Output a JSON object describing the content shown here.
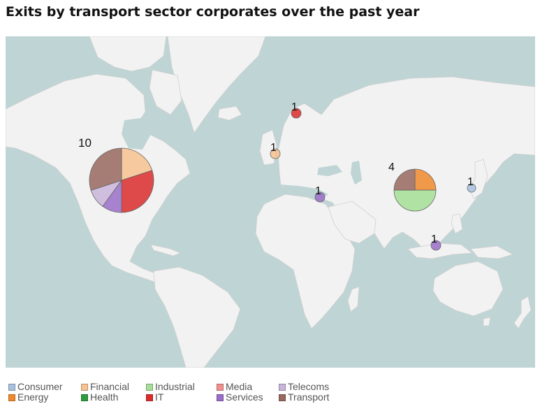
{
  "title": "Exits by transport sector corporates over the past year",
  "colors": {
    "ocean": "#bfd4d4",
    "land": "#f2f2f2"
  },
  "legend": [
    {
      "label": "Consumer",
      "color": "#a9c1e0"
    },
    {
      "label": "Energy",
      "color": "#f0892d"
    },
    {
      "label": "Financial",
      "color": "#f7c28f"
    },
    {
      "label": "Health",
      "color": "#2e9b3e"
    },
    {
      "label": "Industrial",
      "color": "#a5df97"
    },
    {
      "label": "IT",
      "color": "#db2c2c"
    },
    {
      "label": "Media",
      "color": "#f08f8c"
    },
    {
      "label": "Services",
      "color": "#9a6ec8"
    },
    {
      "label": "Telecoms",
      "color": "#c9b5da"
    },
    {
      "label": "Transport",
      "color": "#98695f"
    }
  ],
  "pies": [
    {
      "location": "North America",
      "count": "10",
      "slices": [
        {
          "sector": "Financial",
          "share": 0.2
        },
        {
          "sector": "IT",
          "share": 0.3
        },
        {
          "sector": "Services",
          "share": 0.1
        },
        {
          "sector": "Telecoms",
          "share": 0.1
        },
        {
          "sector": "Transport",
          "share": 0.3
        }
      ]
    },
    {
      "location": "Scandinavia",
      "count": "1",
      "slices": [
        {
          "sector": "IT",
          "share": 1
        }
      ]
    },
    {
      "location": "Western Europe",
      "count": "1",
      "slices": [
        {
          "sector": "Financial",
          "share": 1
        }
      ]
    },
    {
      "location": "Middle East",
      "count": "1",
      "slices": [
        {
          "sector": "Services",
          "share": 1
        }
      ]
    },
    {
      "location": "China",
      "count": "4",
      "slices": [
        {
          "sector": "Energy",
          "share": 0.25
        },
        {
          "sector": "Industrial",
          "share": 0.5
        },
        {
          "sector": "Transport",
          "share": 0.25
        }
      ]
    },
    {
      "location": "Japan",
      "count": "1",
      "slices": [
        {
          "sector": "Consumer",
          "share": 1
        }
      ]
    },
    {
      "location": "Indonesia",
      "count": "1",
      "slices": [
        {
          "sector": "Services",
          "share": 1
        }
      ]
    }
  ]
}
